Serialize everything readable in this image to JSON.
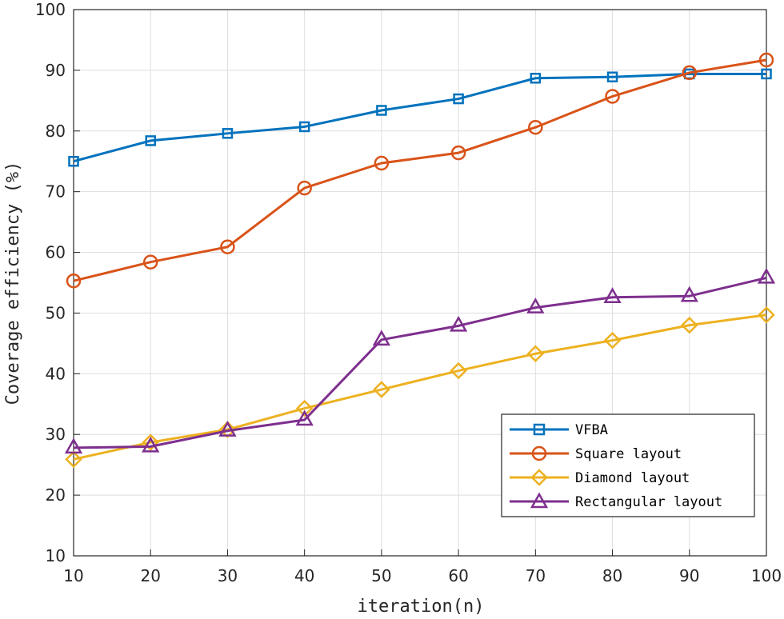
{
  "chart_data": {
    "type": "line",
    "title": "",
    "xlabel": "iteration(n)",
    "ylabel": "Coverage efficiency (%)",
    "xlim": [
      10,
      100
    ],
    "ylim": [
      10,
      100
    ],
    "grid": true,
    "legend_position": "bottom-right",
    "x": [
      10,
      20,
      30,
      40,
      50,
      60,
      70,
      80,
      90,
      100
    ],
    "xticks": [
      "10",
      "20",
      "30",
      "40",
      "50",
      "60",
      "70",
      "80",
      "90",
      "100"
    ],
    "yticks": [
      "10",
      "20",
      "30",
      "40",
      "50",
      "60",
      "70",
      "80",
      "90",
      "100"
    ],
    "series": [
      {
        "name": "VFBA",
        "marker": "square",
        "color": "#0072BD",
        "values": [
          75.0,
          78.4,
          79.6,
          80.7,
          83.4,
          85.3,
          88.7,
          88.9,
          89.4,
          89.4
        ]
      },
      {
        "name": "Square layout",
        "marker": "circle",
        "color": "#D95319",
        "values": [
          55.3,
          58.4,
          60.9,
          70.6,
          74.7,
          76.4,
          80.6,
          85.7,
          89.6,
          91.7
        ]
      },
      {
        "name": "Diamond layout",
        "marker": "diamond",
        "color": "#EDB120",
        "values": [
          25.9,
          28.7,
          30.8,
          34.3,
          37.4,
          40.5,
          43.3,
          45.5,
          48.0,
          49.7
        ]
      },
      {
        "name": "Rectangular layout",
        "marker": "triangle",
        "color": "#7E2F8E",
        "values": [
          27.8,
          28.0,
          30.6,
          32.4,
          45.6,
          47.9,
          50.9,
          52.6,
          52.8,
          55.8
        ]
      }
    ]
  }
}
